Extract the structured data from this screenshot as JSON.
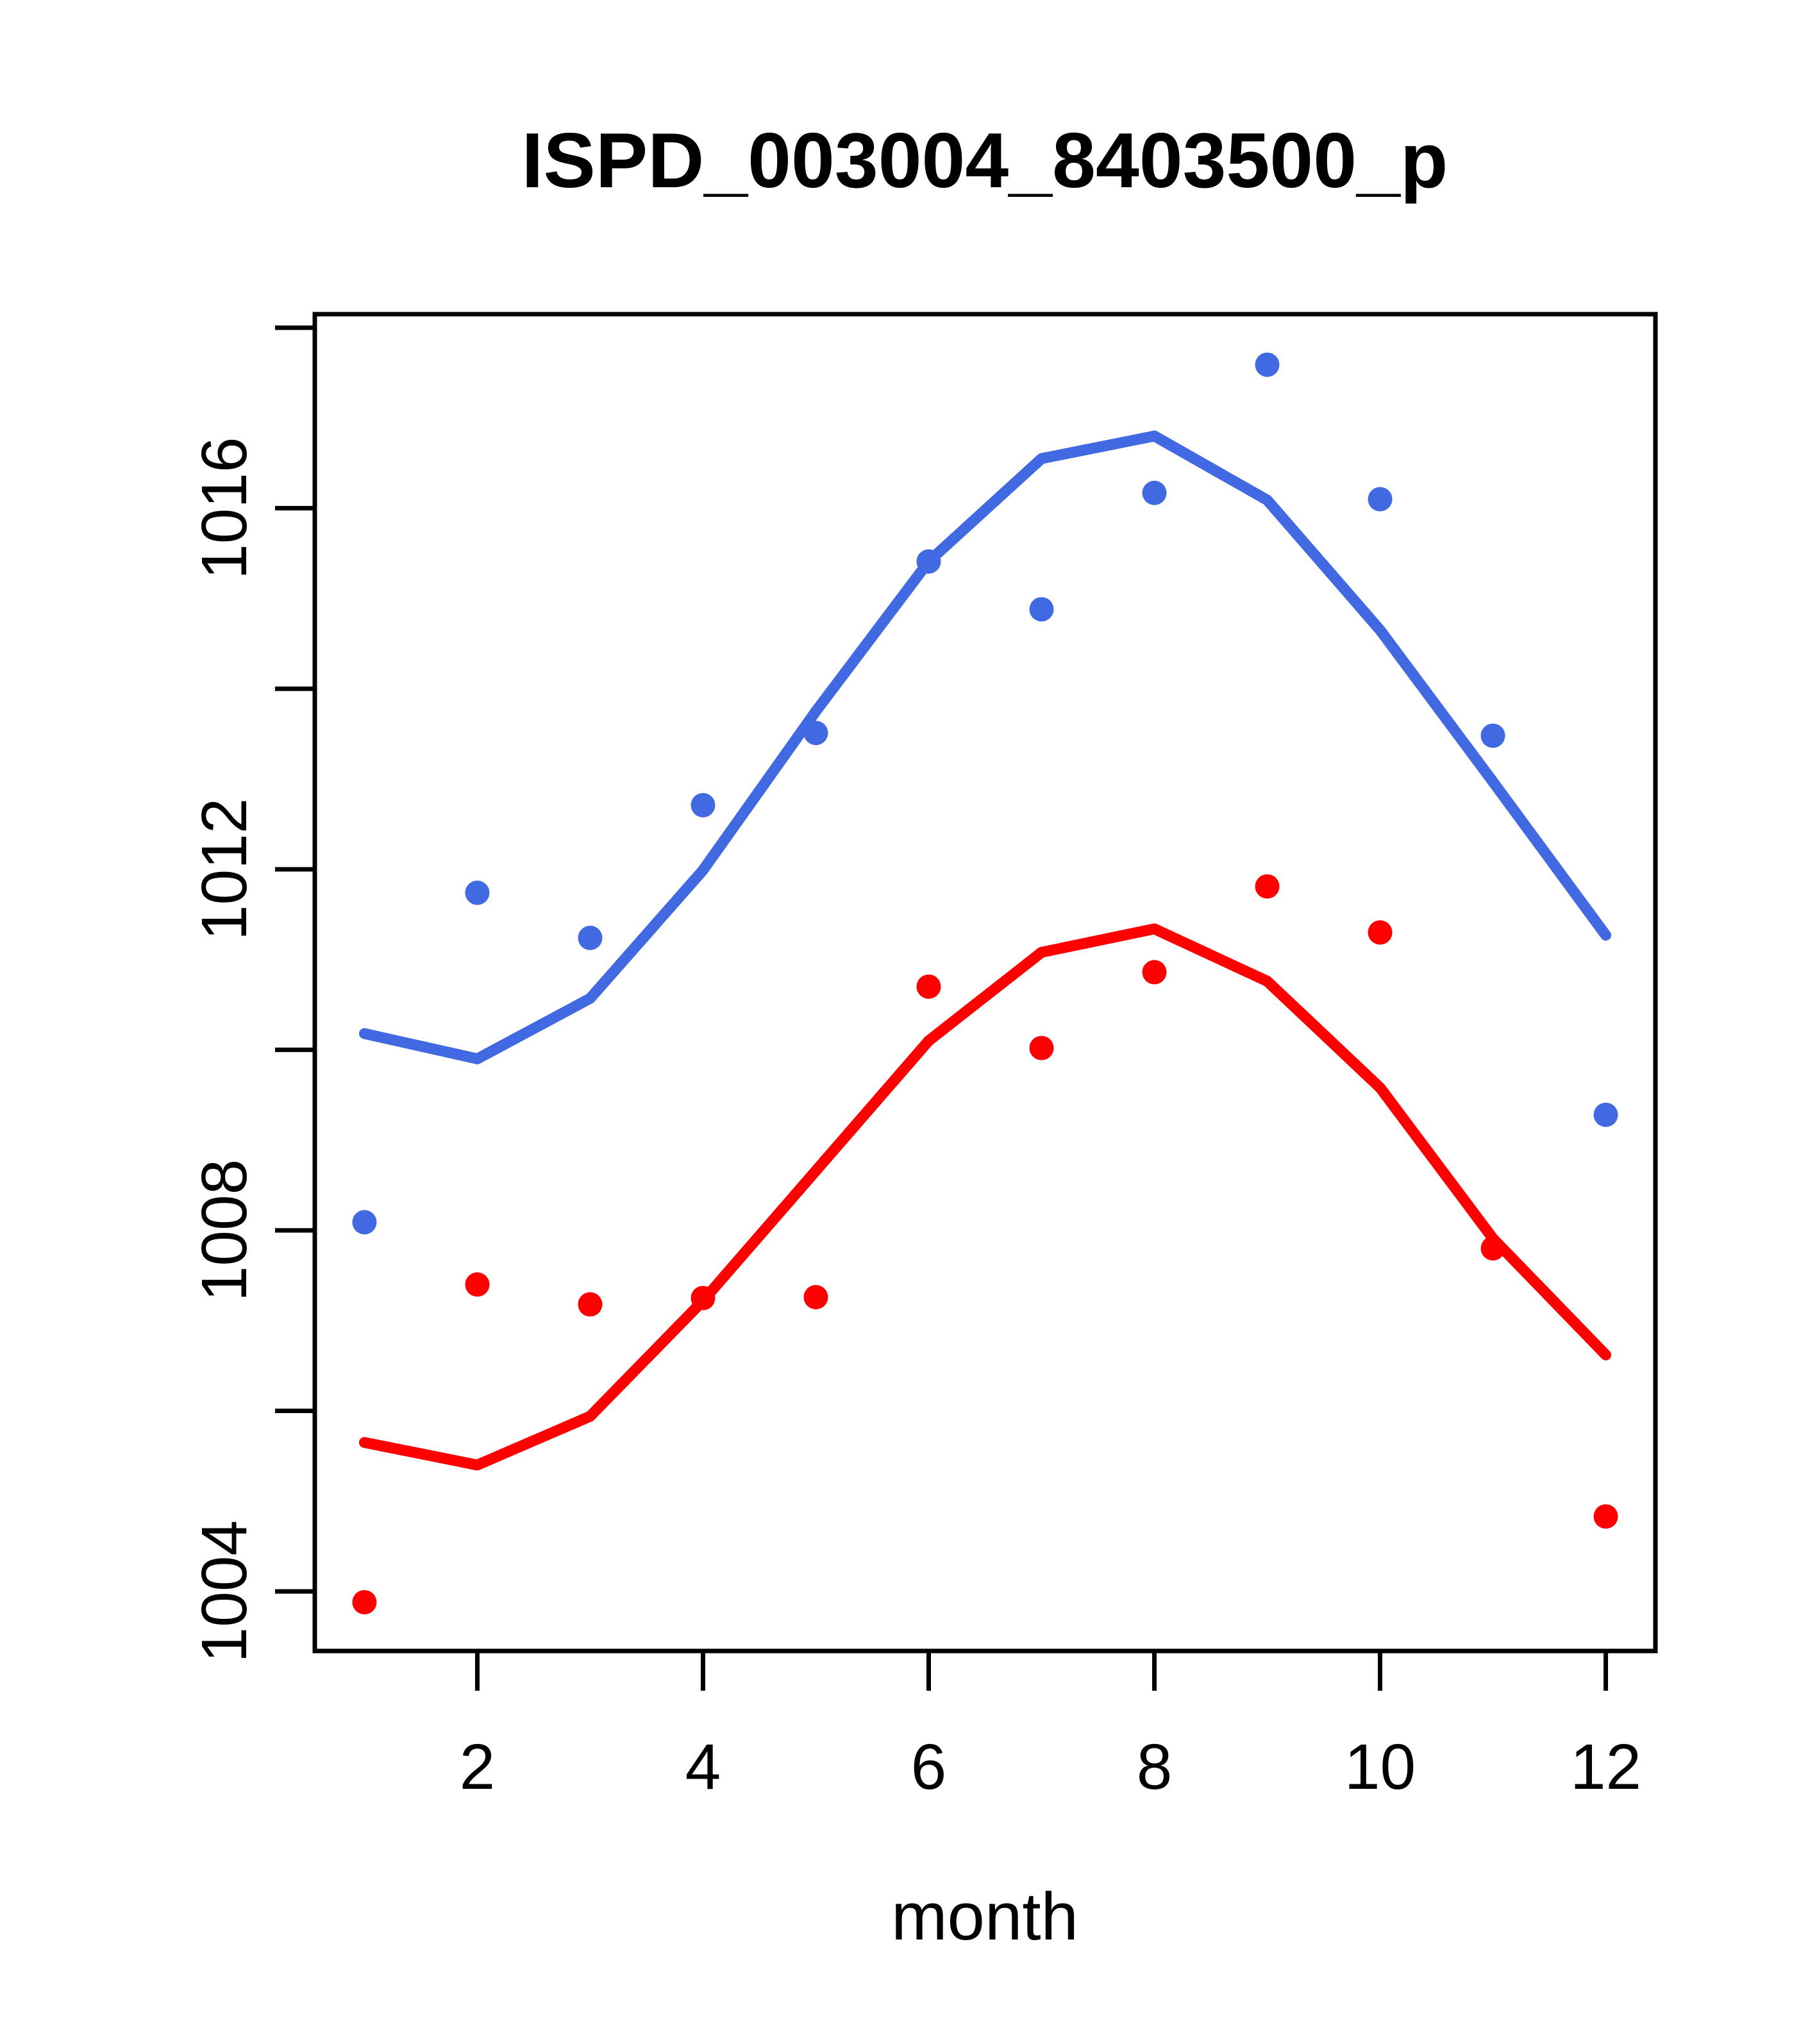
{
  "title": "ISPD_003004_8403500_p",
  "axis": {
    "x_label": "month",
    "x_tick_labels": [
      "2",
      "4",
      "6",
      "8",
      "10",
      "12"
    ],
    "y_tick_labels": [
      "1004",
      "1008",
      "1012",
      "1016"
    ]
  },
  "colors": {
    "blue_series": "#4169E1",
    "red_series": "#FF0000",
    "axis_color": "#000000",
    "background": "#FFFFFF"
  },
  "chart_data": {
    "type": "scatter",
    "title": "ISPD_003004_8403500_p",
    "xlabel": "month",
    "ylabel": "",
    "grid": false,
    "legend": "none",
    "xlim": [
      0.56,
      12.44
    ],
    "ylim": [
      1003.34,
      1018.15
    ],
    "x": [
      1,
      2,
      3,
      4,
      5,
      6,
      7,
      8,
      9,
      10,
      11,
      12
    ],
    "xticks_labeled": [
      2,
      4,
      6,
      8,
      10,
      12
    ],
    "yticks_all": [
      1004,
      1006,
      1008,
      1010,
      1012,
      1014,
      1016,
      1018
    ],
    "yticks_labeled": [
      1004,
      1008,
      1012,
      1016
    ],
    "series": [
      {
        "name": "blue-points",
        "kind": "points",
        "color": "#4169E1",
        "values": [
          1008.09,
          1011.74,
          1011.24,
          1012.71,
          1013.51,
          1015.41,
          1014.88,
          1016.17,
          1017.59,
          1016.1,
          1013.48,
          1009.28
        ]
      },
      {
        "name": "blue-smooth-line",
        "kind": "line",
        "color": "#4169E1",
        "values": [
          1010.18,
          1009.9,
          1010.57,
          1011.99,
          1013.75,
          1015.41,
          1016.55,
          1016.8,
          1016.09,
          1014.65,
          1012.97,
          1011.27
        ]
      },
      {
        "name": "red-points",
        "kind": "points",
        "color": "#FF0000",
        "values": [
          1003.88,
          1007.4,
          1007.18,
          1007.25,
          1007.26,
          1010.7,
          1010.02,
          1010.86,
          1011.81,
          1011.3,
          1007.8,
          1004.83
        ]
      },
      {
        "name": "red-smooth-line",
        "kind": "line",
        "color": "#FF0000",
        "values": [
          1005.65,
          1005.4,
          1005.94,
          1007.22,
          1008.66,
          1010.1,
          1011.08,
          1011.34,
          1010.76,
          1009.58,
          1007.91,
          1006.62
        ]
      }
    ]
  }
}
